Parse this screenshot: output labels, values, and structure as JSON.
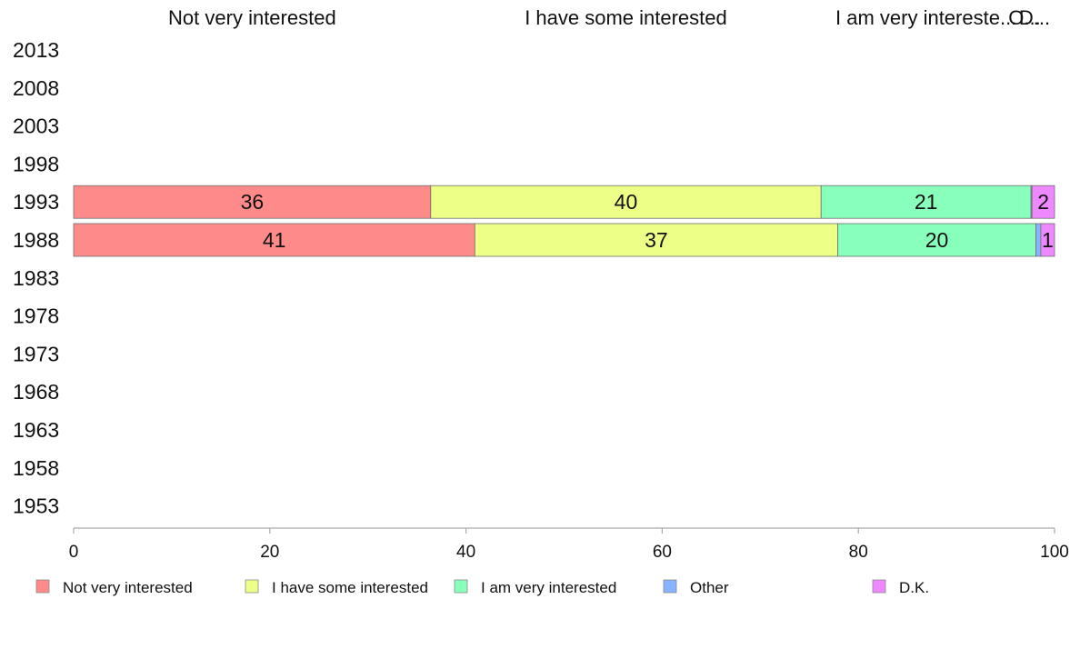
{
  "chart_data": {
    "type": "bar",
    "orientation": "horizontal",
    "stacked": true,
    "categories": [
      "2013",
      "2008",
      "2003",
      "1998",
      "1993",
      "1988",
      "1983",
      "1978",
      "1973",
      "1968",
      "1963",
      "1958",
      "1953"
    ],
    "series": [
      {
        "name": "Not very interested",
        "color": "#ff8a8a",
        "values": [
          null,
          null,
          null,
          null,
          36.4,
          40.9,
          null,
          null,
          null,
          null,
          null,
          null,
          null
        ],
        "labels": [
          null,
          null,
          null,
          null,
          "36",
          "41",
          null,
          null,
          null,
          null,
          null,
          null,
          null
        ]
      },
      {
        "name": "I have some interested",
        "color": "#eeff88",
        "values": [
          null,
          null,
          null,
          null,
          39.8,
          37.0,
          null,
          null,
          null,
          null,
          null,
          null,
          null
        ],
        "labels": [
          null,
          null,
          null,
          null,
          "40",
          "37",
          null,
          null,
          null,
          null,
          null,
          null,
          null
        ]
      },
      {
        "name": "I am very interested",
        "color": "#88ffbb",
        "values": [
          null,
          null,
          null,
          null,
          21.4,
          20.2,
          null,
          null,
          null,
          null,
          null,
          null,
          null
        ],
        "labels": [
          null,
          null,
          null,
          null,
          "21",
          "20",
          null,
          null,
          null,
          null,
          null,
          null,
          null
        ]
      },
      {
        "name": "Other",
        "color": "#88b4ff",
        "values": [
          null,
          null,
          null,
          null,
          0.1,
          0.5,
          null,
          null,
          null,
          null,
          null,
          null,
          null
        ],
        "labels": [
          null,
          null,
          null,
          null,
          null,
          null,
          null,
          null,
          null,
          null,
          null,
          null,
          null
        ]
      },
      {
        "name": "D.K.",
        "color": "#ee88ff",
        "values": [
          null,
          null,
          null,
          null,
          2.3,
          1.4,
          null,
          null,
          null,
          null,
          null,
          null,
          null
        ],
        "labels": [
          null,
          null,
          null,
          null,
          "2",
          "1",
          null,
          null,
          null,
          null,
          null,
          null,
          null
        ]
      }
    ],
    "top_labels": [
      "Not very interested",
      "I have some interested",
      "I am very intereste...",
      "O...",
      "D..."
    ],
    "xticks": [
      0,
      20,
      40,
      60,
      80,
      100
    ],
    "xlim": [
      0,
      100
    ],
    "grid": false,
    "legend_position": "bottom"
  }
}
